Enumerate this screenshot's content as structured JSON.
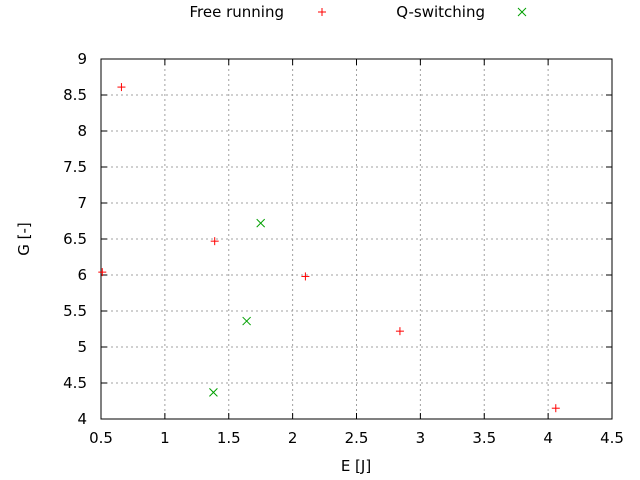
{
  "chart_data": {
    "type": "scatter",
    "title": "",
    "xlabel": "E [J]",
    "ylabel": "G [-]",
    "xlim": [
      0.5,
      4.5
    ],
    "ylim": [
      4,
      9
    ],
    "xticks": [
      "0.5",
      "1",
      "1.5",
      "2",
      "2.5",
      "3",
      "3.5",
      "4",
      "4.5"
    ],
    "yticks": [
      "4",
      "4.5",
      "5",
      "5.5",
      "6",
      "6.5",
      "7",
      "7.5",
      "8",
      "8.5",
      "9"
    ],
    "grid": true,
    "legend_position": "top-outside",
    "series": [
      {
        "name": "Free running",
        "marker": "plus",
        "color": "#ff0000",
        "points": [
          [
            0.66,
            8.61
          ],
          [
            1.39,
            6.47
          ],
          [
            0.51,
            6.04
          ],
          [
            2.1,
            5.98
          ],
          [
            2.84,
            5.22
          ],
          [
            4.06,
            4.15
          ]
        ]
      },
      {
        "name": "Q-switching",
        "marker": "cross",
        "color": "#00a000",
        "points": [
          [
            1.75,
            6.72
          ],
          [
            1.64,
            5.36
          ],
          [
            1.38,
            4.37
          ]
        ]
      }
    ]
  }
}
